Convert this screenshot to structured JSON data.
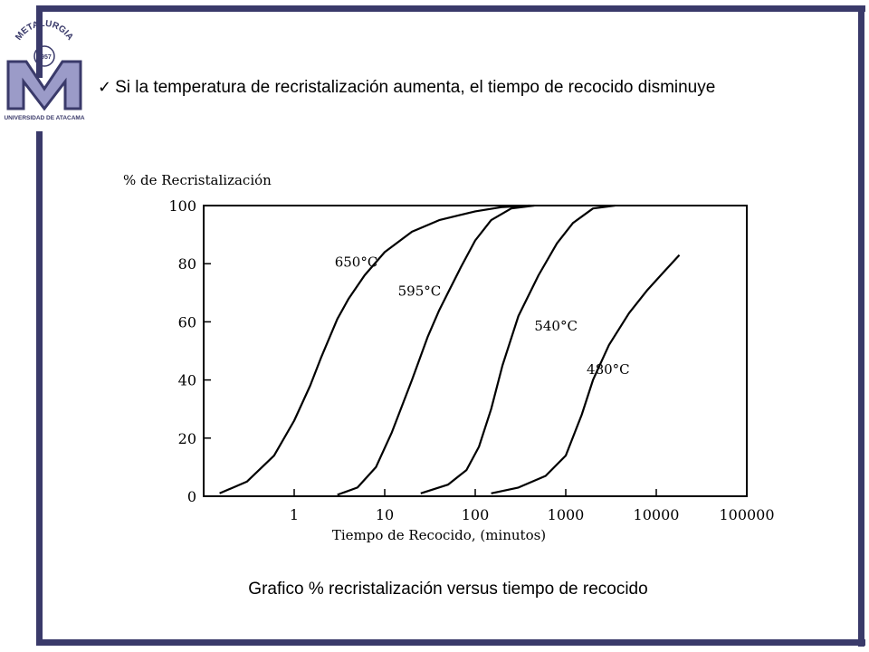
{
  "slide": {
    "bullet_text": "Si la temperatura de recristalización aumenta, el tiempo de recocido disminuye",
    "caption": "Grafico % recristalización versus tiempo de recocido",
    "check_icon": "✓",
    "frame_color": "#3a3a6a"
  },
  "logo": {
    "top_text": "METALURGIA",
    "year": "1957",
    "bottom_text": "UNIVERSIDAD DE ATACAMA",
    "color": "#3a3a6a"
  },
  "chart_data": {
    "type": "line",
    "ylabel": "% de Recristalización",
    "xlabel": "Tiempo de Recocido, (minutos)",
    "x_scale": "log",
    "xlim": [
      0.1,
      100000
    ],
    "ylim": [
      0,
      100
    ],
    "x_ticks": [
      1,
      10,
      100,
      1000,
      10000,
      100000
    ],
    "x_tick_labels": [
      "1",
      "10",
      "100",
      "1000",
      "10000",
      "100000"
    ],
    "y_ticks": [
      0,
      20,
      40,
      60,
      80,
      100
    ],
    "y_tick_labels": [
      "0",
      "20",
      "40",
      "60",
      "80",
      "100"
    ],
    "grid": false,
    "series": [
      {
        "name": "650°C",
        "x": [
          0.15,
          0.3,
          0.6,
          1.0,
          1.5,
          2.0,
          3.0,
          4.0,
          6.0,
          10,
          20,
          40,
          100,
          200,
          400
        ],
        "y": [
          1,
          5,
          14,
          26,
          38,
          48,
          61,
          68,
          76,
          84,
          91,
          95,
          98,
          99.5,
          100
        ],
        "label_x": 2.8,
        "label_y": 79
      },
      {
        "name": "595°C",
        "x": [
          3,
          5,
          8,
          12,
          20,
          30,
          40,
          50,
          70,
          100,
          150,
          250,
          450
        ],
        "y": [
          0.5,
          3,
          10,
          22,
          40,
          55,
          64,
          70,
          79,
          88,
          95,
          99,
          100
        ],
        "label_x": 14.0,
        "label_y": 69
      },
      {
        "name": "540°C",
        "x": [
          25,
          50,
          80,
          110,
          150,
          200,
          300,
          500,
          800,
          1200,
          2000,
          3500
        ],
        "y": [
          1,
          4,
          9,
          17,
          30,
          45,
          62,
          76,
          87,
          94,
          99,
          100
        ],
        "label_x": 450,
        "label_y": 57
      },
      {
        "name": "480°C",
        "x": [
          150,
          300,
          600,
          1000,
          1500,
          2000,
          3000,
          5000,
          8000,
          12000,
          18000
        ],
        "y": [
          1,
          3,
          7,
          14,
          28,
          40,
          52,
          63,
          71,
          77,
          83
        ],
        "label_x": 1700,
        "label_y": 42
      }
    ]
  }
}
